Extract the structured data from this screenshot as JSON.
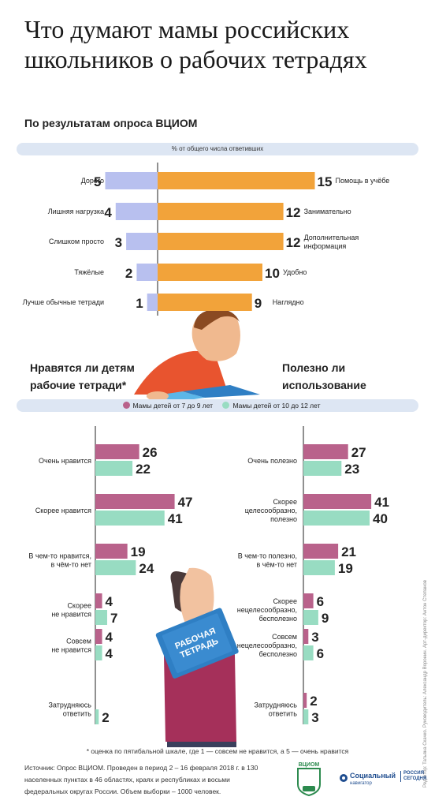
{
  "title": "Что думают мамы российских школьников о рабочих тетрадях",
  "subtitle": "По результатам опроса ВЦИОМ",
  "top_chart_header": "% от общего числа ответивших",
  "left_heading": "Нравятся ли детям рабочие тетради*",
  "right_heading": "Полезно ли использование",
  "legend": {
    "a": "Мамы детей от 7 до 9 лет",
    "b": "Мамы детей от 10 до 12 лет"
  },
  "footnote": "* оценка по пятибальной шкале, где 1 — совсем не нравится, а 5 — очень нравится",
  "source": "Источник: Опрос ВЦИОМ. Проведен в период  2 – 16 февраля 2018 г. в 130 населенных пунктах в 46 областях, краях и республиках и восьми федеральных округах России. Объем выборки – 1000 человек.",
  "credit": "Редактор: Татьяна Скачко. Руководитель: Александр Воронин. Арт-директор: Антон Степанов",
  "logos": {
    "vciom": "ВЦИОМ",
    "vciom_years": "30 лет",
    "sn_top": "Социальный",
    "sn_bottom": "навигатор",
    "ria_top": "РОССИЯ",
    "ria_bottom": "СЕГОДНЯ"
  },
  "illustrations": {
    "book_title_top": "РАБОЧАЯ",
    "book_title_bottom": "ТЕТРАДЬ"
  },
  "colors": {
    "minus": "#b8c0ef",
    "plus": "#f2a33a",
    "age_7_9": "#b9628b",
    "age_10_12": "#98dcc2",
    "band": "#dde6f3"
  },
  "chart_data": [
    {
      "type": "bar",
      "orientation": "horizontal-diverging",
      "header": "% от общего числа ответивших",
      "negative_side": [
        {
          "label": "Дорого",
          "value": 5
        },
        {
          "label": "Лишняя нагрузка",
          "value": 4
        },
        {
          "label": "Слишком просто",
          "value": 3
        },
        {
          "label": "Тяжёлые",
          "value": 2
        },
        {
          "label": "Лучше обычные тетради",
          "value": 1
        }
      ],
      "positive_side": [
        {
          "label": "Помощь в учёбе",
          "value": 15
        },
        {
          "label": "Занимательно",
          "value": 12
        },
        {
          "label": "Дополнительная информация",
          "value": 12
        },
        {
          "label": "Удобно",
          "value": 10
        },
        {
          "label": "Наглядно",
          "value": 9
        }
      ]
    },
    {
      "type": "bar",
      "orientation": "horizontal",
      "title": "Нравятся ли детям рабочие тетради*",
      "categories": [
        "Очень нравится",
        "Скорее нравится",
        "В чем-то нравится, в чём-то нет",
        "Скорее не нравится",
        "Совсем не нравится",
        "Затрудняюсь ответить"
      ],
      "series": [
        {
          "name": "Мамы детей от 7 до 9 лет",
          "values": [
            26,
            47,
            19,
            4,
            4,
            null
          ]
        },
        {
          "name": "Мамы детей от 10 до 12 лет",
          "values": [
            22,
            41,
            24,
            7,
            4,
            2
          ]
        }
      ]
    },
    {
      "type": "bar",
      "orientation": "horizontal",
      "title": "Полезно ли использование",
      "categories": [
        "Очень полезно",
        "Скорее целесообразно, полезно",
        "В чем-то полезно, в чём-то нет",
        "Скорее нецелесообразно, бесполезно",
        "Совсем нецелесообразно, бесполезно",
        "Затрудняюсь ответить"
      ],
      "series": [
        {
          "name": "Мамы детей от 7 до 9 лет",
          "values": [
            27,
            41,
            21,
            6,
            3,
            2
          ]
        },
        {
          "name": "Мамы детей от 10 до 12 лет",
          "values": [
            23,
            40,
            19,
            9,
            6,
            3
          ]
        }
      ]
    }
  ]
}
